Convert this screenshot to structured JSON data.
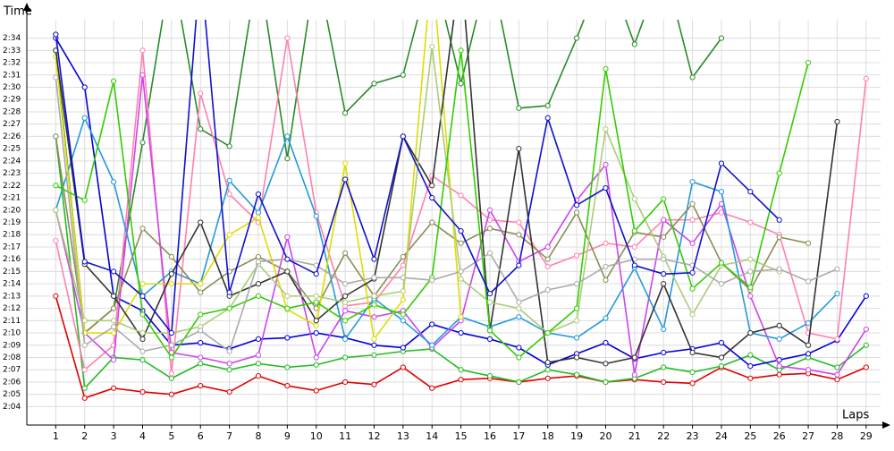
{
  "chart_data": {
    "type": "line",
    "x_label": "Laps",
    "y_label": "Time",
    "grid": true,
    "x": [
      1,
      2,
      3,
      4,
      5,
      6,
      7,
      8,
      9,
      10,
      11,
      12,
      13,
      14,
      15,
      16,
      17,
      18,
      19,
      20,
      21,
      22,
      23,
      24,
      25,
      26,
      27,
      28,
      29
    ],
    "xlim": [
      0,
      29.5
    ],
    "xticks": [
      1,
      2,
      3,
      4,
      5,
      6,
      7,
      8,
      9,
      10,
      11,
      12,
      13,
      14,
      15,
      16,
      17,
      18,
      19,
      20,
      21,
      22,
      23,
      24,
      25,
      26,
      27,
      28,
      29
    ],
    "ylim": [
      122.5,
      155.5
    ],
    "yticks": [
      {
        "value": 124,
        "label": "2:04"
      },
      {
        "value": 125,
        "label": "2:05"
      },
      {
        "value": 126,
        "label": "2:06"
      },
      {
        "value": 127,
        "label": "2:07"
      },
      {
        "value": 128,
        "label": "2:08"
      },
      {
        "value": 129,
        "label": "2:09"
      },
      {
        "value": 130,
        "label": "2:10"
      },
      {
        "value": 131,
        "label": "2:11"
      },
      {
        "value": 132,
        "label": "2:12"
      },
      {
        "value": 133,
        "label": "2:13"
      },
      {
        "value": 134,
        "label": "2:14"
      },
      {
        "value": 135,
        "label": "2:15"
      },
      {
        "value": 136,
        "label": "2:16"
      },
      {
        "value": 137,
        "label": "2:17"
      },
      {
        "value": 138,
        "label": "2:18"
      },
      {
        "value": 139,
        "label": "2:19"
      },
      {
        "value": 140,
        "label": "2:20"
      },
      {
        "value": 141,
        "label": "2:21"
      },
      {
        "value": 142,
        "label": "2:22"
      },
      {
        "value": 143,
        "label": "2:23"
      },
      {
        "value": 144,
        "label": "2:24"
      },
      {
        "value": 145,
        "label": "2:25"
      },
      {
        "value": 146,
        "label": "2:26"
      },
      {
        "value": 147,
        "label": "2:27"
      },
      {
        "value": 148,
        "label": "2:28"
      },
      {
        "value": 149,
        "label": "2:29"
      },
      {
        "value": 150,
        "label": "2:30"
      },
      {
        "value": 151,
        "label": "2:31"
      },
      {
        "value": 152,
        "label": "2:32"
      },
      {
        "value": 153,
        "label": "2:33"
      },
      {
        "value": 154,
        "label": "2:34"
      }
    ],
    "series": [
      {
        "color": "#e00000",
        "values": [
          133,
          124.7,
          125.5,
          125.2,
          125,
          125.7,
          125.2,
          126.5,
          125.7,
          125.3,
          126,
          125.8,
          127.2,
          125.5,
          126.2,
          126.3,
          126,
          126.3,
          126.5,
          126,
          126.2,
          126,
          125.9,
          127.2,
          126.3,
          126.6,
          126.7,
          126.2,
          127.2
        ]
      },
      {
        "color": "#22bb22",
        "values": [
          146,
          125.5,
          128,
          127.8,
          126.3,
          127.5,
          127,
          127.5,
          127.2,
          127.4,
          128,
          128.2,
          128.5,
          128.7,
          127,
          126.5,
          126,
          127,
          126.6,
          126,
          126.3,
          127.2,
          126.8,
          127.3,
          128.2,
          127,
          128,
          127.2,
          129
        ]
      },
      {
        "color": "#0000dd",
        "values": [
          154,
          150,
          133,
          131.8,
          129,
          129.2,
          128.7,
          129.5,
          129.6,
          130,
          129.6,
          129,
          128.8,
          130.7,
          130,
          129.5,
          128.8,
          127.4,
          128.3,
          129.2,
          127.9,
          128.4,
          128.7,
          129.2,
          127.3,
          127.8,
          128.3,
          129.4,
          133
        ]
      },
      {
        "color": "#2a8a2a",
        "values": [
          153,
          130,
          132,
          145.5,
          160,
          146.6,
          145.2,
          160,
          144.2,
          160,
          147.9,
          150.3,
          151,
          160,
          150.3,
          160,
          148.3,
          148.5,
          154,
          160,
          153.5,
          160,
          150.8,
          154,
          null,
          null,
          null,
          null,
          null
        ]
      },
      {
        "color": "#ff80b0",
        "values": [
          137.5,
          127,
          129,
          153,
          126.7,
          149.5,
          141.3,
          139,
          154,
          139.8,
          132.2,
          132.5,
          135.5,
          142.8,
          141.2,
          139.2,
          139,
          135.4,
          136.3,
          137.3,
          137,
          139.2,
          139.2,
          139.8,
          139,
          138,
          130,
          129.5,
          150.7
        ]
      },
      {
        "color": "#cc44ee",
        "values": [
          140,
          130,
          127.8,
          151,
          128.4,
          128,
          127.5,
          128.2,
          137.8,
          128,
          131.8,
          131.3,
          131.8,
          128.8,
          131,
          140,
          135.8,
          137,
          140.8,
          143.7,
          126.6,
          139.2,
          137.3,
          140.5,
          133,
          127.3,
          127,
          126.6,
          130.3
        ]
      },
      {
        "color": "#2299dd",
        "values": [
          140,
          147.5,
          142.3,
          133,
          135,
          134,
          142.4,
          139.8,
          146,
          139.5,
          129.5,
          132.8,
          131,
          129,
          131.3,
          130.5,
          131.3,
          130,
          129.6,
          131.2,
          135.3,
          130.3,
          142.3,
          141.5,
          130,
          129.5,
          130.8,
          133.2,
          null
        ]
      },
      {
        "color": "#8b8b55",
        "values": [
          146,
          130,
          132,
          138.5,
          136.2,
          133.3,
          135,
          136.2,
          135,
          132,
          136.5,
          133,
          136.2,
          139,
          137.3,
          138.5,
          138,
          136,
          139.8,
          134.3,
          138.2,
          137.8,
          140.5,
          135.7,
          133.5,
          137.8,
          137.3,
          null,
          null
        ]
      },
      {
        "color": "#dddd00",
        "values": [
          152.5,
          130,
          130,
          134,
          134,
          134,
          138,
          139.4,
          131.9,
          130.6,
          143.8,
          129.5,
          132.7,
          160,
          131.3,
          null,
          null,
          null,
          null,
          null,
          null,
          null,
          null,
          null,
          null,
          null,
          null,
          null,
          null
        ]
      },
      {
        "color": "#333333",
        "values": [
          153,
          135.6,
          133,
          129.5,
          134.8,
          139,
          133,
          134,
          135,
          131,
          133,
          134.4,
          146,
          142,
          160,
          130.2,
          145,
          127.6,
          128,
          127.5,
          128,
          134,
          128.4,
          128,
          130,
          130.6,
          129,
          147.2,
          null
        ]
      },
      {
        "color": "#aacc77",
        "values": [
          140,
          131,
          131,
          130,
          130,
          130.5,
          132,
          135.6,
          133,
          133,
          132.5,
          133,
          133.4,
          153.3,
          134.4,
          132.5,
          132,
          130,
          131,
          146.6,
          140.9,
          136.2,
          131.5,
          135.5,
          136,
          135,
          null,
          null,
          null
        ]
      },
      {
        "color": "#33cc00",
        "values": [
          142,
          140.8,
          150.5,
          131.5,
          128,
          131.5,
          132,
          133,
          132,
          132.5,
          131,
          132.3,
          131.5,
          134.5,
          153,
          130.2,
          128,
          130,
          132,
          151.5,
          138.3,
          140.9,
          133.6,
          135.7,
          133.7,
          143,
          152,
          null,
          null
        ]
      },
      {
        "color": "#aaaaaa",
        "values": [
          150.8,
          129,
          130.5,
          128.5,
          129,
          130.2,
          128.5,
          135.8,
          136,
          135.5,
          134,
          134.5,
          134.5,
          134.3,
          135,
          136.5,
          132.5,
          133.5,
          134,
          135.4,
          136,
          136,
          135.5,
          134,
          135,
          135.2,
          134.2,
          135.2,
          null
        ]
      },
      {
        "color": "#1010cc",
        "values": [
          154.3,
          135.8,
          135,
          133,
          130,
          160,
          133.3,
          141.3,
          136,
          134.8,
          142.5,
          136,
          146,
          141,
          138.3,
          133.2,
          135.5,
          147.5,
          140.4,
          141.8,
          135.5,
          134.8,
          134.9,
          143.8,
          141.5,
          139.2,
          null,
          null,
          null
        ]
      }
    ]
  }
}
